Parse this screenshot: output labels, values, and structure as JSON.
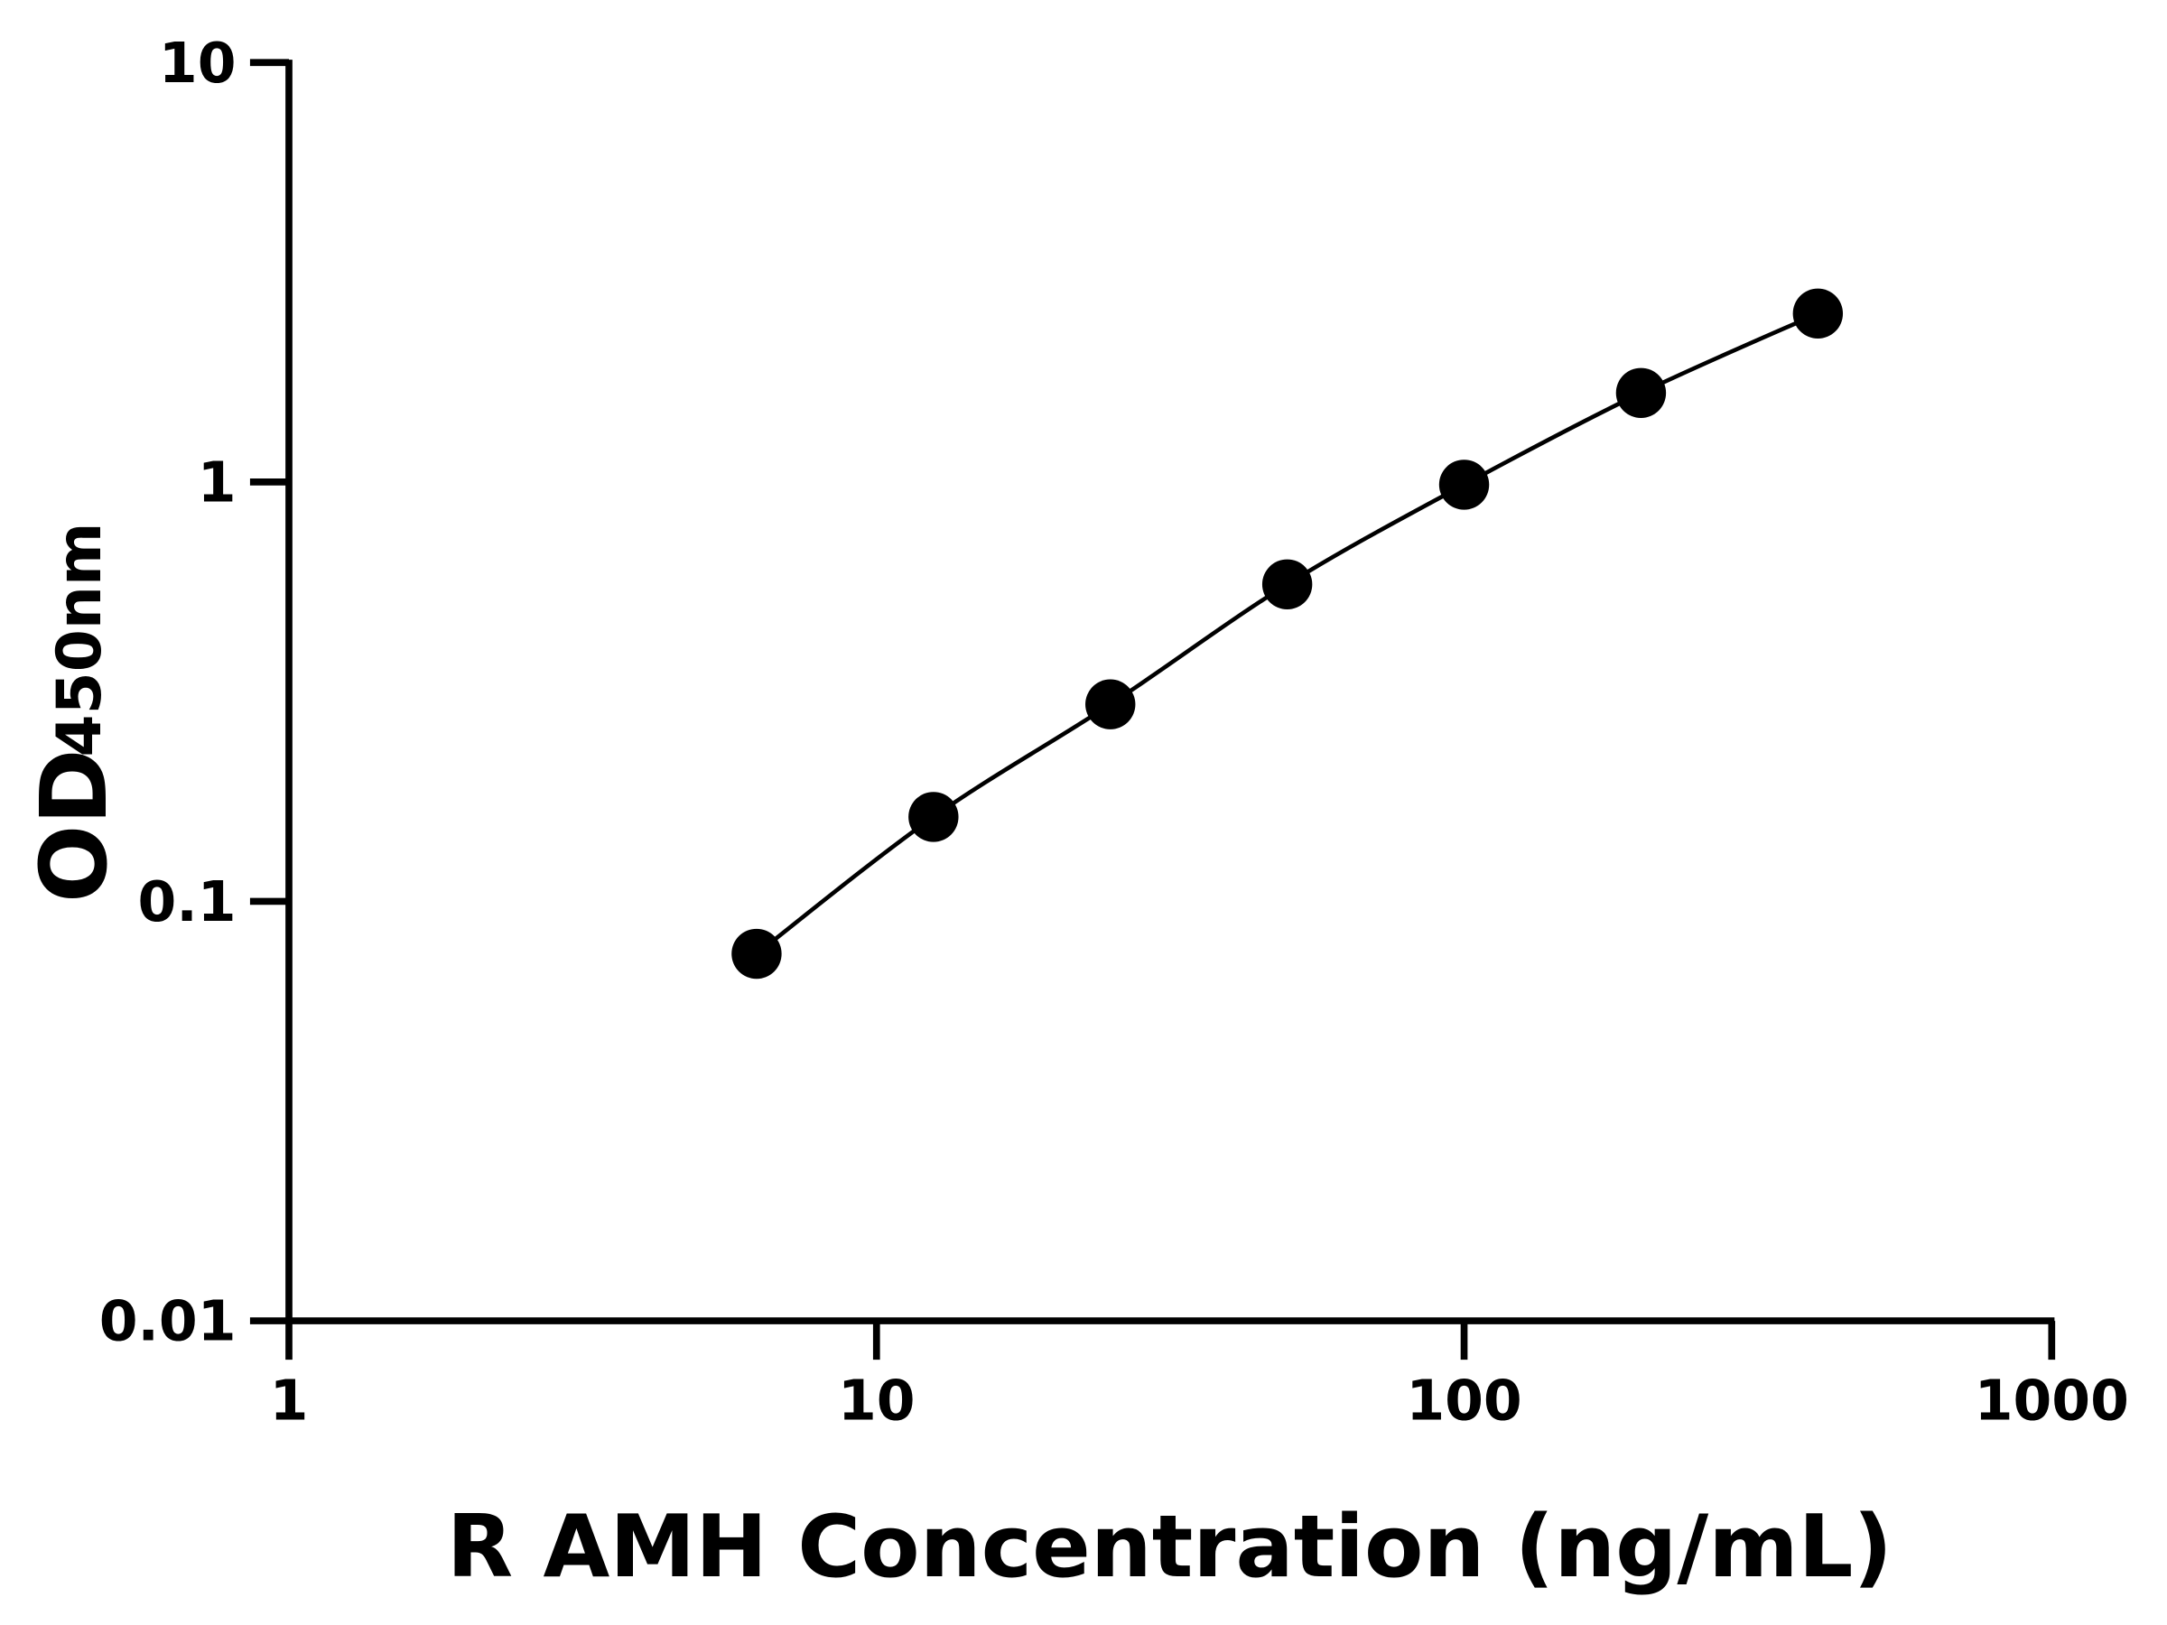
{
  "chart_data": {
    "type": "scatter",
    "title": "",
    "xlabel": "R AMH Concentration (ng/mL)",
    "ylabel_main": "OD",
    "ylabel_sub": "450nm",
    "x_scale": "log",
    "y_scale": "log",
    "xlim": [
      1,
      1000
    ],
    "ylim": [
      0.01,
      10
    ],
    "x_ticks": [
      "1",
      "10",
      "100",
      "1000"
    ],
    "y_ticks": [
      "0.01",
      "0.1",
      "1",
      "10"
    ],
    "grid": false,
    "fit_line": true,
    "marker_color": "#000000",
    "line_color": "#000000",
    "series": [
      {
        "x": [
          6.25,
          12.5,
          25,
          50,
          100,
          200,
          400
        ],
        "y": [
          0.075,
          0.159,
          0.295,
          0.57,
          0.985,
          1.63,
          2.52
        ]
      }
    ]
  }
}
